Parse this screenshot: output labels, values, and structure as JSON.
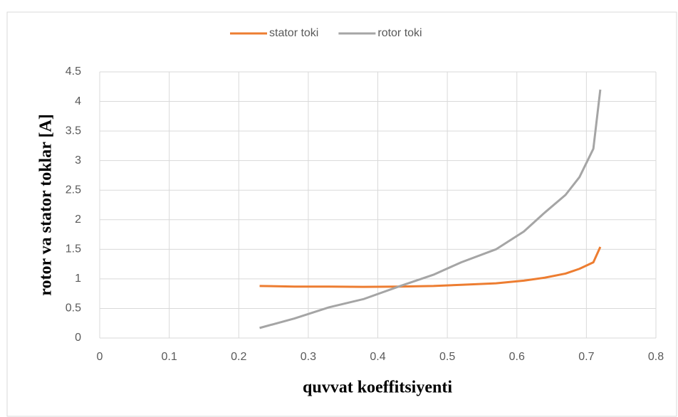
{
  "chart_data": {
    "type": "line",
    "xlabel": "quvvat koeffitsiyenti",
    "ylabel": "rotor va stator toklar [A]",
    "x": [
      0.23,
      0.28,
      0.33,
      0.38,
      0.43,
      0.48,
      0.52,
      0.57,
      0.61,
      0.64,
      0.67,
      0.69,
      0.71,
      0.72
    ],
    "series": [
      {
        "name": "stator toki",
        "color": "#ed7d31",
        "values": [
          0.88,
          0.87,
          0.87,
          0.865,
          0.87,
          0.88,
          0.9,
          0.925,
          0.97,
          1.02,
          1.09,
          1.17,
          1.28,
          1.54
        ]
      },
      {
        "name": "rotor toki",
        "color": "#a5a5a5",
        "values": [
          0.17,
          0.33,
          0.52,
          0.66,
          0.87,
          1.07,
          1.28,
          1.5,
          1.8,
          2.12,
          2.42,
          2.72,
          3.2,
          4.2
        ]
      }
    ],
    "xlim": [
      0,
      0.8
    ],
    "xticks": [
      0,
      0.1,
      0.2,
      0.3,
      0.4,
      0.5,
      0.6,
      0.7,
      0.8
    ],
    "ylim": [
      0,
      4.5
    ],
    "yticks": [
      0,
      0.5,
      1,
      1.5,
      2,
      2.5,
      3,
      3.5,
      4,
      4.5
    ],
    "grid": true,
    "legend": "top"
  }
}
